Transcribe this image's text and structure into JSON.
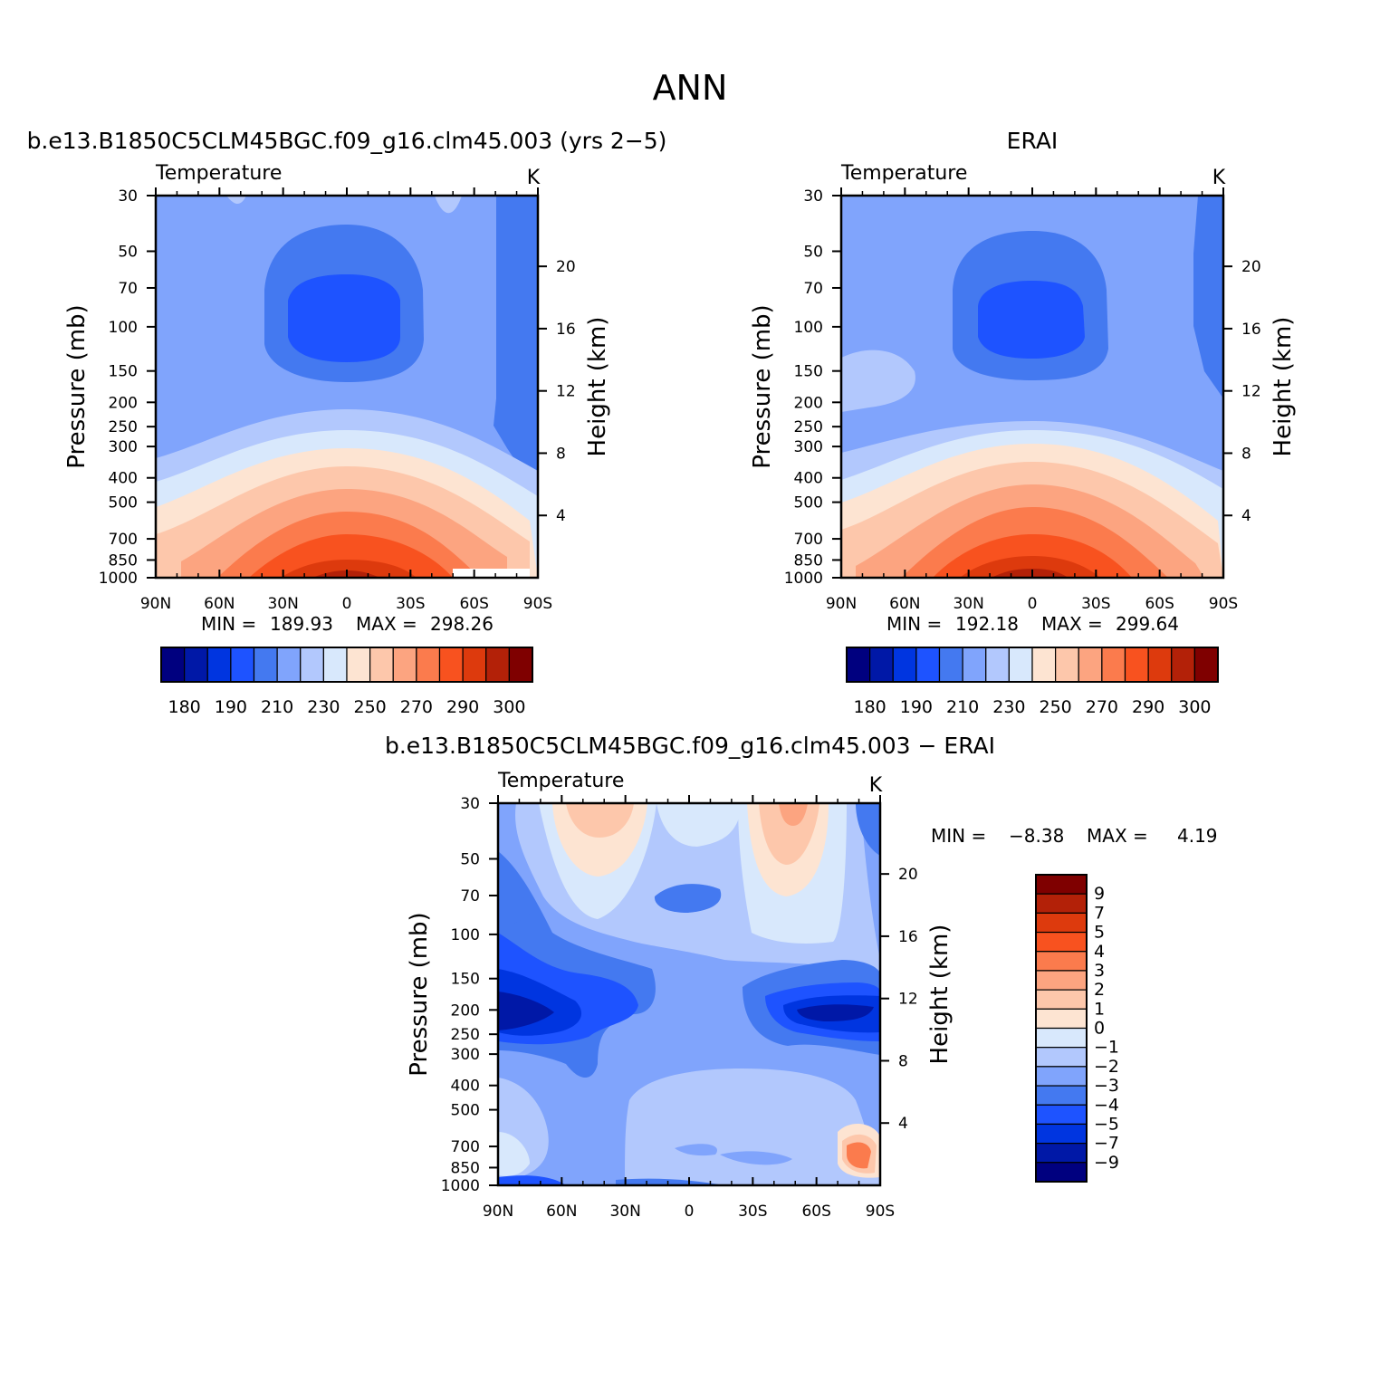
{
  "page_title": "ANN",
  "panel_titles": {
    "model": "b.e13.B1850C5CLM45BGC.f09_g16.clm45.003 (yrs 2−5)",
    "obs": "ERAI",
    "diff": "b.e13.B1850C5CLM45BGC.f09_g16.clm45.003 − ERAI"
  },
  "colorbars": {
    "abs_colors": [
      "#00007f",
      "#0018a7",
      "#0035e0",
      "#1e53ff",
      "#4479f0",
      "#80a4fc",
      "#b2c8fd",
      "#d8e8fc",
      "#fde4d2",
      "#fdc7ab",
      "#fca480",
      "#fb7b4d",
      "#f8521f",
      "#dd3a0d",
      "#b32108",
      "#7f0000"
    ],
    "abs_labels": [
      "180",
      "190",
      "210",
      "230",
      "250",
      "270",
      "290",
      "300"
    ],
    "diff_colors": [
      "#7f0000",
      "#b32108",
      "#dd3a0d",
      "#f8521f",
      "#fb7b4d",
      "#fca480",
      "#fdc7ab",
      "#fde4d2",
      "#d8e8fc",
      "#b2c8fd",
      "#80a4fc",
      "#4479f0",
      "#1e53ff",
      "#0035e0",
      "#0018a7",
      "#00007f"
    ],
    "diff_labels": [
      "9",
      "7",
      "5",
      "4",
      "3",
      "2",
      "1",
      "0",
      "−1",
      "−2",
      "−3",
      "−4",
      "−5",
      "−7",
      "−9"
    ]
  },
  "chart_data": [
    {
      "type": "heatmap",
      "title": "b.e13.B1850C5CLM45BGC.f09_g16.clm45.003 (yrs 2−5)",
      "variable": "Temperature",
      "units": "K",
      "xlabel": "",
      "ylabel": "Pressure (mb)",
      "ylabel_right": "Height (km)",
      "x_ticks": [
        "90N",
        "60N",
        "30N",
        "0",
        "30S",
        "60S",
        "90S"
      ],
      "y_ticks": [
        "30",
        "50",
        "70",
        "100",
        "150",
        "200",
        "250",
        "300",
        "400",
        "500",
        "700",
        "850",
        "1000"
      ],
      "y_right_ticks": [
        "4",
        "8",
        "12",
        "16",
        "20"
      ],
      "min_label": "MIN =",
      "min": "189.93",
      "max_label": "MAX =",
      "max": "298.26",
      "approx_values_K": {
        "lat": [
          90,
          60,
          30,
          0,
          -30,
          -60,
          -90
        ],
        "levels_mb": [
          30,
          100,
          300,
          500,
          850,
          1000
        ],
        "rows": [
          [
            222,
            222,
            223,
            224,
            223,
            222,
            212
          ],
          [
            222,
            218,
            205,
            195,
            205,
            220,
            212
          ],
          [
            225,
            225,
            232,
            235,
            232,
            225,
            218
          ],
          [
            248,
            252,
            262,
            266,
            262,
            250,
            236
          ],
          [
            256,
            272,
            290,
            295,
            290,
            272,
            250
          ],
          [
            263,
            282,
            295,
            298,
            295,
            280,
            245
          ]
        ]
      }
    },
    {
      "type": "heatmap",
      "title": "ERAI",
      "variable": "Temperature",
      "units": "K",
      "xlabel": "",
      "ylabel": "Pressure (mb)",
      "ylabel_right": "Height (km)",
      "x_ticks": [
        "90N",
        "60N",
        "30N",
        "0",
        "30S",
        "60S",
        "90S"
      ],
      "y_ticks": [
        "30",
        "50",
        "70",
        "100",
        "150",
        "200",
        "250",
        "300",
        "400",
        "500",
        "700",
        "850",
        "1000"
      ],
      "y_right_ticks": [
        "4",
        "8",
        "12",
        "16",
        "20"
      ],
      "min_label": "MIN =",
      "min": "192.18",
      "max_label": "MAX =",
      "max": "299.64",
      "approx_values_K": {
        "lat": [
          90,
          60,
          30,
          0,
          -30,
          -60,
          -90
        ],
        "levels_mb": [
          30,
          100,
          300,
          500,
          850,
          1000
        ],
        "rows": [
          [
            222,
            222,
            223,
            224,
            223,
            222,
            215
          ],
          [
            223,
            220,
            207,
            197,
            207,
            222,
            215
          ],
          [
            226,
            226,
            233,
            236,
            233,
            226,
            220
          ],
          [
            250,
            254,
            264,
            268,
            264,
            252,
            238
          ],
          [
            258,
            274,
            292,
            296,
            292,
            274,
            255
          ],
          [
            265,
            284,
            297,
            299,
            297,
            282,
            250
          ]
        ]
      }
    },
    {
      "type": "heatmap",
      "title": "b.e13.B1850C5CLM45BGC.f09_g16.clm45.003 − ERAI",
      "variable": "Temperature",
      "units": "K",
      "xlabel": "",
      "ylabel": "Pressure (mb)",
      "ylabel_right": "Height (km)",
      "x_ticks": [
        "90N",
        "60N",
        "30N",
        "0",
        "30S",
        "60S",
        "90S"
      ],
      "y_ticks": [
        "30",
        "50",
        "70",
        "100",
        "150",
        "200",
        "250",
        "300",
        "400",
        "500",
        "700",
        "850",
        "1000"
      ],
      "y_right_ticks": [
        "4",
        "8",
        "12",
        "16",
        "20"
      ],
      "min_label": "MIN =",
      "min": "−8.38",
      "max_label": "MAX =",
      "max": "4.19",
      "approx_values_K": {
        "lat": [
          90,
          60,
          30,
          0,
          -30,
          -60,
          -90
        ],
        "levels_mb": [
          30,
          70,
          200,
          400,
          700,
          1000
        ],
        "rows": [
          [
            -2,
            1.5,
            -1,
            -1.5,
            -1,
            1.5,
            -3
          ],
          [
            -3,
            -0.5,
            -2,
            -3.5,
            -1,
            -0.5,
            -2
          ],
          [
            -8,
            -4,
            -3,
            -2.5,
            -3,
            -7,
            -4
          ],
          [
            -2,
            -2.5,
            -3,
            -2,
            -1.5,
            -2,
            -2
          ],
          [
            -0.5,
            -2.5,
            -2.5,
            -1.5,
            -2.5,
            -1.5,
            3
          ],
          [
            -4,
            -2,
            -2,
            -1.5,
            -1.5,
            -2,
            -1
          ]
        ]
      }
    }
  ]
}
